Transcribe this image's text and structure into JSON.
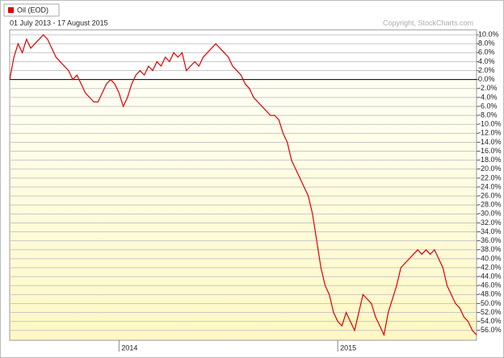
{
  "chart_data": {
    "type": "line",
    "subtitle": "01 July 2013 - 17 August 2015",
    "copyright": "Copyright, StockCharts.com",
    "series": [
      {
        "name": "Oil (EOD)",
        "color": "#e00000",
        "values": [
          0,
          5,
          8,
          6,
          9,
          7,
          8,
          9,
          10,
          9,
          7,
          5,
          4,
          3,
          2,
          0,
          1,
          -1,
          -3,
          -4,
          -5,
          -5,
          -3,
          -1,
          0,
          -1,
          -3,
          -6,
          -4,
          -1,
          1,
          2,
          1,
          3,
          2,
          4,
          3,
          5,
          4,
          6,
          5,
          6,
          2,
          3,
          4,
          3,
          5,
          6,
          7,
          8,
          7,
          6,
          5,
          3,
          2,
          1,
          -1,
          -2,
          -4,
          -5,
          -6,
          -7,
          -8,
          -8,
          -9,
          -12,
          -14,
          -18,
          -20,
          -22,
          -24,
          -26,
          -30,
          -36,
          -42,
          -46,
          -48,
          -52,
          -54,
          -55,
          -52,
          -54,
          -56,
          -52,
          -48,
          -49,
          -50,
          -53,
          -55,
          -57,
          -52,
          -49,
          -46,
          -42,
          -41,
          -40,
          -39,
          -38,
          -39,
          -38,
          -39,
          -38,
          -40,
          -42,
          -46,
          -48,
          -50,
          -51,
          -53,
          -54,
          -56,
          -57
        ]
      }
    ],
    "xlim": [
      0,
      111
    ],
    "xticks": [
      {
        "value": 26,
        "label": "2014"
      },
      {
        "value": 78,
        "label": "2015"
      }
    ],
    "ylim": [
      -58.2,
      11.1
    ],
    "yticks": [
      {
        "value": 10,
        "label": "10.0%"
      },
      {
        "value": 8,
        "label": "8.0%"
      },
      {
        "value": 6,
        "label": "6.0%"
      },
      {
        "value": 4,
        "label": "4.0%"
      },
      {
        "value": 2,
        "label": "2.0%"
      },
      {
        "value": 0,
        "label": "0.0%"
      },
      {
        "value": -2,
        "label": "-2.0%"
      },
      {
        "value": -4,
        "label": "-4.0%"
      },
      {
        "value": -6,
        "label": "-6.0%"
      },
      {
        "value": -8,
        "label": "-8.0%"
      },
      {
        "value": -10,
        "label": "-10.0%"
      },
      {
        "value": -12,
        "label": "-12.0%"
      },
      {
        "value": -14,
        "label": "-14.0%"
      },
      {
        "value": -16,
        "label": "-16.0%"
      },
      {
        "value": -18,
        "label": "-18.0%"
      },
      {
        "value": -20,
        "label": "-20.0%"
      },
      {
        "value": -22,
        "label": "-22.0%"
      },
      {
        "value": -24,
        "label": "-24.0%"
      },
      {
        "value": -26,
        "label": "-26.0%"
      },
      {
        "value": -28,
        "label": "-28.0%"
      },
      {
        "value": -30,
        "label": "-30.0%"
      },
      {
        "value": -32,
        "label": "-32.0%"
      },
      {
        "value": -34,
        "label": "-34.0%"
      },
      {
        "value": -36,
        "label": "-36.0%"
      },
      {
        "value": -38,
        "label": "-38.0%"
      },
      {
        "value": -40,
        "label": "-40.0%"
      },
      {
        "value": -42,
        "label": "-42.0%"
      },
      {
        "value": -44,
        "label": "-44.0%"
      },
      {
        "value": -46,
        "label": "-46.0%"
      },
      {
        "value": -48,
        "label": "-48.0%"
      },
      {
        "value": -50,
        "label": "-50.0%"
      },
      {
        "value": -52,
        "label": "-52.0%"
      },
      {
        "value": -54,
        "label": "-54.0%"
      },
      {
        "value": -56,
        "label": "-56.0%"
      }
    ],
    "grid": true
  }
}
